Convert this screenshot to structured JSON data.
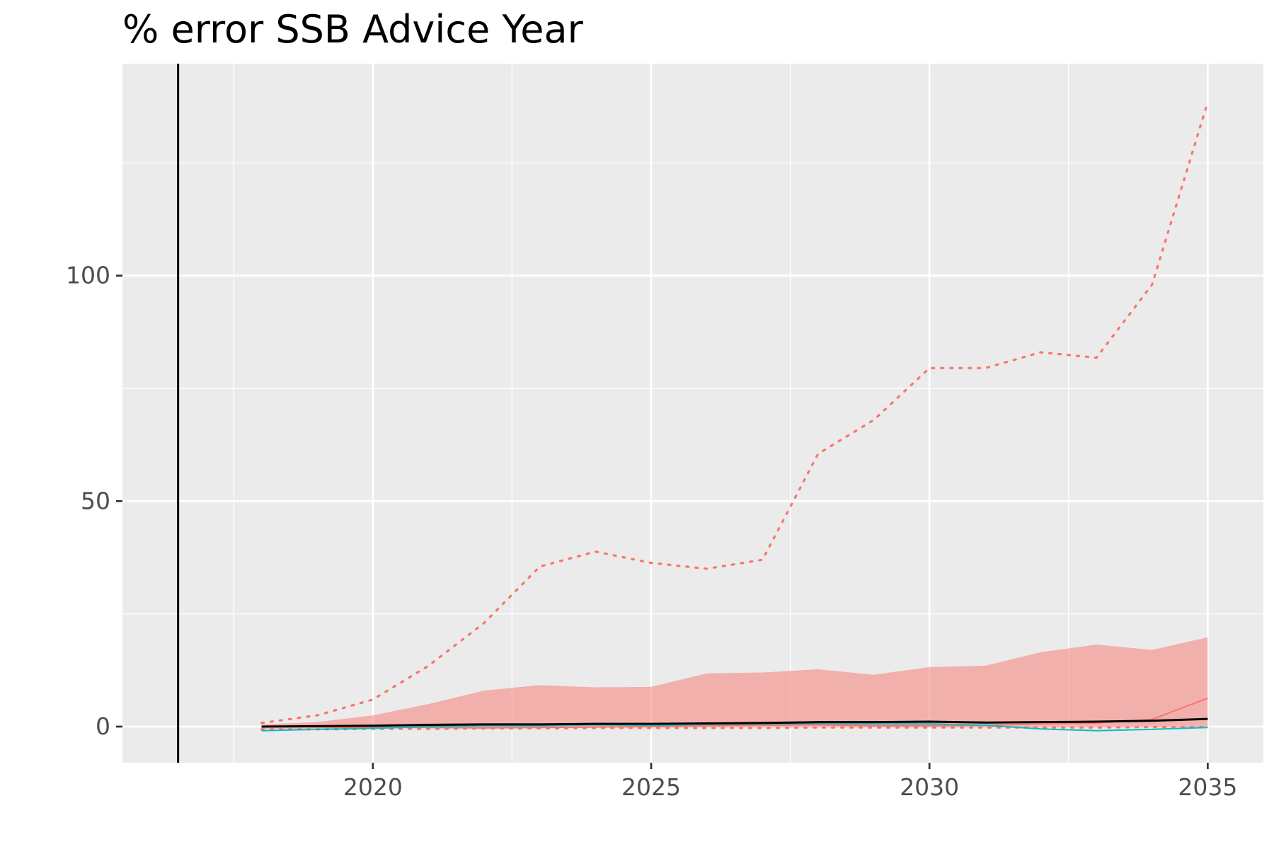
{
  "chart_data": {
    "type": "line",
    "title": "% error SSB Advice Year",
    "xlabel": "",
    "ylabel": "",
    "xlim": [
      2015.5,
      2036.0
    ],
    "ylim": [
      -8,
      147
    ],
    "x_ticks": [
      2020,
      2025,
      2030,
      2035
    ],
    "x_tick_labels": [
      "2020",
      "2025",
      "2030",
      "2035"
    ],
    "y_ticks": [
      0,
      50,
      100
    ],
    "y_tick_labels": [
      "0",
      "50",
      "100"
    ],
    "grid": true,
    "legend": "none",
    "vline_x": 2016.5,
    "colors": {
      "panel": "#ebebeb",
      "grid": "#ffffff",
      "red": "#f8766d",
      "ribbon": "#f8766d",
      "teal": "#00bfc4",
      "black": "#000000"
    },
    "x": [
      2018,
      2019,
      2020,
      2021,
      2022,
      2023,
      2024,
      2025,
      2026,
      2027,
      2028,
      2029,
      2030,
      2031,
      2032,
      2033,
      2034,
      2035
    ],
    "ribbon": {
      "lower": [
        -0.5,
        -0.4,
        -0.3,
        -0.3,
        -0.3,
        -0.3,
        -0.2,
        -0.2,
        -0.2,
        -0.2,
        -0.2,
        -0.2,
        -0.2,
        -0.2,
        -0.2,
        -0.2,
        -0.2,
        -0.2
      ],
      "upper": [
        0.5,
        1.0,
        2.5,
        5.0,
        8.0,
        9.2,
        8.7,
        8.8,
        11.8,
        12.0,
        12.7,
        11.5,
        13.2,
        13.5,
        16.5,
        18.2,
        17.0,
        19.8
      ]
    },
    "series": [
      {
        "color": "#f8766d",
        "style": "dotted",
        "values": [
          0.8,
          2.5,
          6.0,
          13.5,
          23.0,
          35.5,
          38.8,
          36.3,
          35.0,
          37.0,
          60.5,
          68.0,
          79.5,
          79.5,
          83.0,
          81.8,
          98.0,
          138.5
        ]
      },
      {
        "color": "#f8766d",
        "style": "dotted",
        "values": [
          -0.6,
          -0.6,
          -0.5,
          -0.5,
          -0.4,
          -0.4,
          -0.3,
          -0.3,
          -0.3,
          -0.3,
          -0.2,
          -0.2,
          -0.2,
          -0.2,
          -0.2,
          -0.2,
          -0.1,
          -0.1
        ]
      },
      {
        "color": "#f8766d",
        "style": "solid",
        "values": [
          0.0,
          -0.1,
          -0.2,
          -0.2,
          -0.3,
          -0.2,
          -0.1,
          0.0,
          0.2,
          0.3,
          0.4,
          0.2,
          0.2,
          0.3,
          0.6,
          0.8,
          1.6,
          6.3
        ]
      },
      {
        "color": "#00bfc4",
        "style": "solid",
        "values": [
          -0.9,
          -0.6,
          -0.4,
          0.0,
          0.2,
          0.2,
          0.4,
          0.3,
          0.5,
          0.6,
          0.7,
          0.6,
          0.6,
          0.3,
          -0.5,
          -0.9,
          -0.6,
          -0.2
        ]
      },
      {
        "color": "#000000",
        "style": "solid",
        "values": [
          0.0,
          0.1,
          0.2,
          0.4,
          0.5,
          0.5,
          0.6,
          0.6,
          0.7,
          0.8,
          1.0,
          1.0,
          1.1,
          0.9,
          1.0,
          1.1,
          1.3,
          1.7
        ]
      }
    ]
  }
}
